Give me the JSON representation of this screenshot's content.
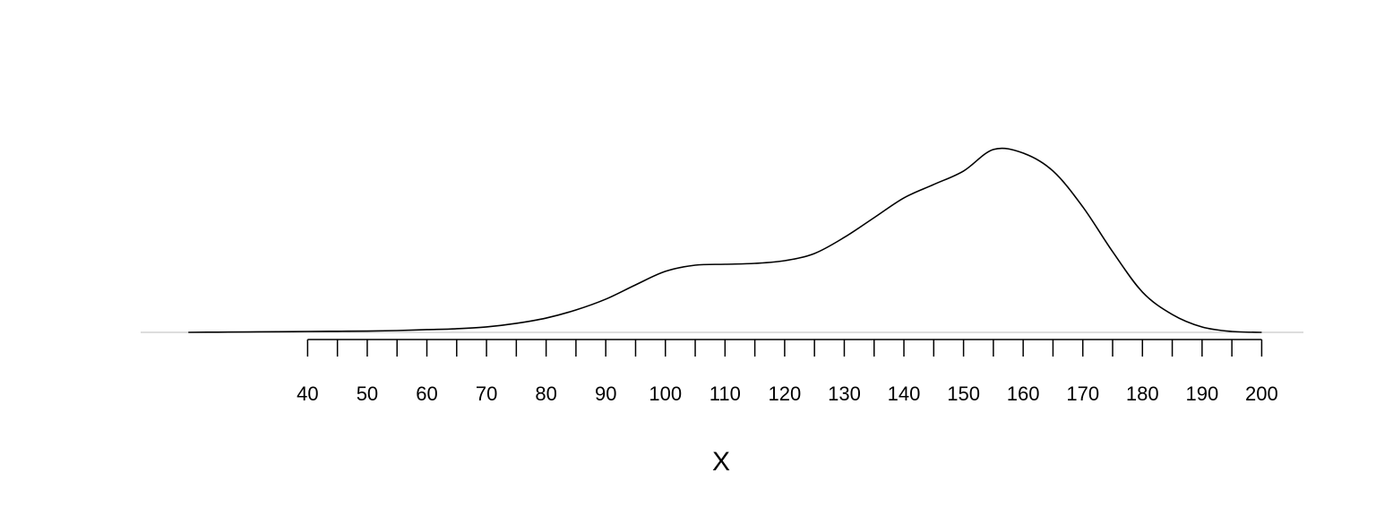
{
  "chart_data": {
    "type": "density",
    "x_label": "X",
    "x": [
      20,
      25,
      30,
      35,
      40,
      45,
      50,
      55,
      60,
      65,
      70,
      75,
      80,
      85,
      90,
      95,
      100,
      105,
      110,
      115,
      120,
      125,
      130,
      135,
      140,
      145,
      150,
      155,
      160,
      165,
      170,
      175,
      180,
      185,
      190,
      195,
      200
    ],
    "values": [
      0,
      2e-05,
      4e-05,
      6e-05,
      9e-05,
      0.00011,
      0.00013,
      0.00018,
      0.00027,
      0.00036,
      0.00054,
      0.0009,
      0.00143,
      0.00224,
      0.00332,
      0.00475,
      0.0061,
      0.00672,
      0.00681,
      0.0069,
      0.00717,
      0.00789,
      0.0095,
      0.01147,
      0.01345,
      0.01479,
      0.01614,
      0.01829,
      0.01793,
      0.01614,
      0.01255,
      0.00807,
      0.00403,
      0.00179,
      0.00054,
      9e-05,
      0
    ],
    "color": "#000000",
    "xlim": [
      12,
      207
    ],
    "ylim": [
      0,
      0.025
    ],
    "xticks": [
      40,
      50,
      60,
      70,
      80,
      90,
      100,
      110,
      120,
      130,
      140,
      150,
      160,
      170,
      180,
      190,
      200
    ],
    "xminor_ticks": [
      45,
      55,
      65,
      75,
      85,
      95,
      105,
      115,
      125,
      135,
      145,
      155,
      165,
      175,
      185,
      195
    ]
  }
}
